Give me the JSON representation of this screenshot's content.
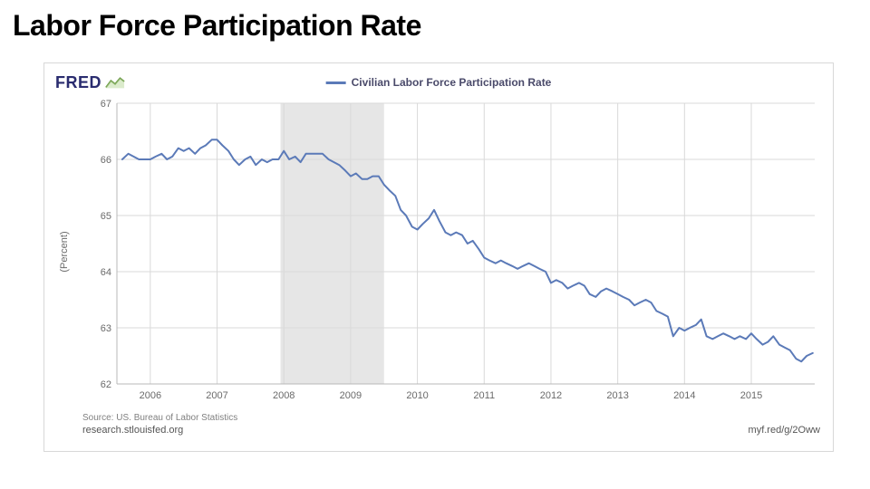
{
  "slide": {
    "title": "Labor Force Participation Rate"
  },
  "chart": {
    "type": "line",
    "logo_text": "FRED",
    "legend": {
      "label": "Civilian Labor Force Participation Rate",
      "color": "#5b7ab8"
    },
    "yaxis": {
      "label": "(Percent)",
      "min": 62,
      "max": 67,
      "ticks": [
        62,
        63,
        64,
        65,
        66,
        67
      ],
      "tick_step": 1,
      "label_fontsize": 11,
      "label_color": "#6a6a6a"
    },
    "xaxis": {
      "min": 2005.5,
      "max": 2015.95,
      "ticks": [
        2006,
        2007,
        2008,
        2009,
        2010,
        2011,
        2012,
        2013,
        2014,
        2015
      ],
      "tick_labels": [
        "2006",
        "2007",
        "2008",
        "2009",
        "2010",
        "2011",
        "2012",
        "2013",
        "2014",
        "2015"
      ],
      "label_fontsize": 11,
      "label_color": "#6a6a6a"
    },
    "recession_band": {
      "start": 2007.95,
      "end": 2009.5,
      "color": "#e6e6e6"
    },
    "series": {
      "color": "#5b7ab8",
      "line_width": 2,
      "points": [
        [
          2005.58,
          66.0
        ],
        [
          2005.67,
          66.1
        ],
        [
          2005.75,
          66.05
        ],
        [
          2005.83,
          66.0
        ],
        [
          2005.92,
          66.0
        ],
        [
          2006.0,
          66.0
        ],
        [
          2006.08,
          66.05
        ],
        [
          2006.17,
          66.1
        ],
        [
          2006.25,
          66.0
        ],
        [
          2006.33,
          66.05
        ],
        [
          2006.42,
          66.2
        ],
        [
          2006.5,
          66.15
        ],
        [
          2006.58,
          66.2
        ],
        [
          2006.67,
          66.1
        ],
        [
          2006.75,
          66.2
        ],
        [
          2006.83,
          66.25
        ],
        [
          2006.92,
          66.35
        ],
        [
          2007.0,
          66.35
        ],
        [
          2007.08,
          66.25
        ],
        [
          2007.17,
          66.15
        ],
        [
          2007.25,
          66.0
        ],
        [
          2007.33,
          65.9
        ],
        [
          2007.42,
          66.0
        ],
        [
          2007.5,
          66.05
        ],
        [
          2007.58,
          65.9
        ],
        [
          2007.67,
          66.0
        ],
        [
          2007.75,
          65.95
        ],
        [
          2007.83,
          66.0
        ],
        [
          2007.92,
          66.0
        ],
        [
          2008.0,
          66.15
        ],
        [
          2008.08,
          66.0
        ],
        [
          2008.17,
          66.05
        ],
        [
          2008.25,
          65.95
        ],
        [
          2008.33,
          66.1
        ],
        [
          2008.42,
          66.1
        ],
        [
          2008.5,
          66.1
        ],
        [
          2008.58,
          66.1
        ],
        [
          2008.67,
          66.0
        ],
        [
          2008.75,
          65.95
        ],
        [
          2008.83,
          65.9
        ],
        [
          2008.92,
          65.8
        ],
        [
          2009.0,
          65.7
        ],
        [
          2009.08,
          65.75
        ],
        [
          2009.17,
          65.65
        ],
        [
          2009.25,
          65.65
        ],
        [
          2009.33,
          65.7
        ],
        [
          2009.42,
          65.7
        ],
        [
          2009.5,
          65.55
        ],
        [
          2009.58,
          65.45
        ],
        [
          2009.67,
          65.35
        ],
        [
          2009.75,
          65.1
        ],
        [
          2009.83,
          65.0
        ],
        [
          2009.92,
          64.8
        ],
        [
          2010.0,
          64.75
        ],
        [
          2010.08,
          64.85
        ],
        [
          2010.17,
          64.95
        ],
        [
          2010.25,
          65.1
        ],
        [
          2010.33,
          64.9
        ],
        [
          2010.42,
          64.7
        ],
        [
          2010.5,
          64.65
        ],
        [
          2010.58,
          64.7
        ],
        [
          2010.67,
          64.65
        ],
        [
          2010.75,
          64.5
        ],
        [
          2010.83,
          64.55
        ],
        [
          2010.92,
          64.4
        ],
        [
          2011.0,
          64.25
        ],
        [
          2011.08,
          64.2
        ],
        [
          2011.17,
          64.15
        ],
        [
          2011.25,
          64.2
        ],
        [
          2011.33,
          64.15
        ],
        [
          2011.42,
          64.1
        ],
        [
          2011.5,
          64.05
        ],
        [
          2011.58,
          64.1
        ],
        [
          2011.67,
          64.15
        ],
        [
          2011.75,
          64.1
        ],
        [
          2011.83,
          64.05
        ],
        [
          2011.92,
          64.0
        ],
        [
          2012.0,
          63.8
        ],
        [
          2012.08,
          63.85
        ],
        [
          2012.17,
          63.8
        ],
        [
          2012.25,
          63.7
        ],
        [
          2012.33,
          63.75
        ],
        [
          2012.42,
          63.8
        ],
        [
          2012.5,
          63.75
        ],
        [
          2012.58,
          63.6
        ],
        [
          2012.67,
          63.55
        ],
        [
          2012.75,
          63.65
        ],
        [
          2012.83,
          63.7
        ],
        [
          2012.92,
          63.65
        ],
        [
          2013.0,
          63.6
        ],
        [
          2013.08,
          63.55
        ],
        [
          2013.17,
          63.5
        ],
        [
          2013.25,
          63.4
        ],
        [
          2013.33,
          63.45
        ],
        [
          2013.42,
          63.5
        ],
        [
          2013.5,
          63.45
        ],
        [
          2013.58,
          63.3
        ],
        [
          2013.67,
          63.25
        ],
        [
          2013.75,
          63.2
        ],
        [
          2013.83,
          62.85
        ],
        [
          2013.92,
          63.0
        ],
        [
          2014.0,
          62.95
        ],
        [
          2014.08,
          63.0
        ],
        [
          2014.17,
          63.05
        ],
        [
          2014.25,
          63.15
        ],
        [
          2014.33,
          62.85
        ],
        [
          2014.42,
          62.8
        ],
        [
          2014.5,
          62.85
        ],
        [
          2014.58,
          62.9
        ],
        [
          2014.67,
          62.85
        ],
        [
          2014.75,
          62.8
        ],
        [
          2014.83,
          62.85
        ],
        [
          2014.92,
          62.8
        ],
        [
          2015.0,
          62.9
        ],
        [
          2015.08,
          62.8
        ],
        [
          2015.17,
          62.7
        ],
        [
          2015.25,
          62.75
        ],
        [
          2015.33,
          62.85
        ],
        [
          2015.42,
          62.7
        ],
        [
          2015.5,
          62.65
        ],
        [
          2015.58,
          62.6
        ],
        [
          2015.67,
          62.45
        ],
        [
          2015.75,
          62.4
        ],
        [
          2015.83,
          62.5
        ],
        [
          2015.92,
          62.55
        ]
      ]
    },
    "background_color": "#ffffff",
    "grid_color": "#d9d9d9",
    "axis_line_color": "#b8b8b8",
    "source_label": "Source: US. Bureau of Labor Statistics",
    "org_label": "research.stlouisfed.org",
    "shortlink": "myf.red/g/2Oww"
  }
}
